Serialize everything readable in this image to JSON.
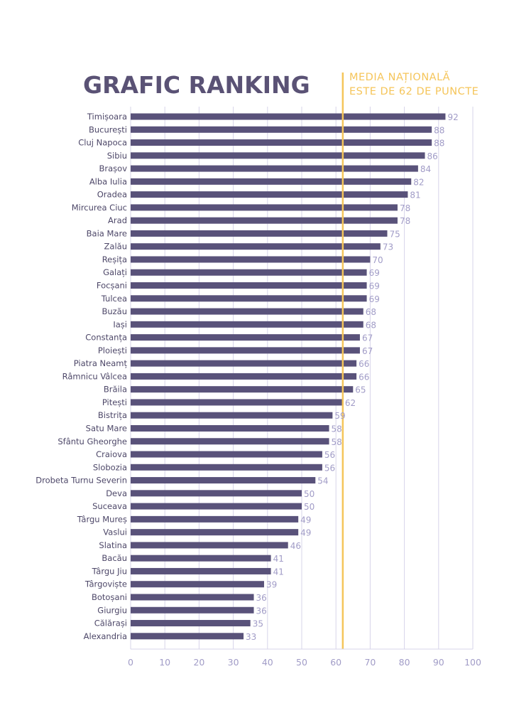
{
  "chart_data": {
    "type": "bar",
    "orientation": "horizontal",
    "title": "GRAFIC RANKING",
    "annotation": [
      "MEDIA NAȚIONALĂ",
      "ESTE DE 62 DE PUNCTE"
    ],
    "reference_line": 62,
    "categories": [
      "Timișoara",
      "București",
      "Cluj Napoca",
      "Sibiu",
      "Brașov",
      "Alba Iulia",
      "Oradea",
      "Mircurea Ciuc",
      "Arad",
      "Baia Mare",
      "Zalău",
      "Reșița",
      "Galați",
      "Focșani",
      "Tulcea",
      "Buzău",
      "Iași",
      "Constanța",
      "Ploiești",
      "Piatra Neamț",
      "Râmnicu Vâlcea",
      "Brăila",
      "Pitești",
      "Bistrița",
      "Satu Mare",
      "Sfântu Gheorghe",
      "Craiova",
      "Slobozia",
      "Drobeta Turnu Severin",
      "Deva",
      "Suceava",
      "Târgu Mureș",
      "Vaslui",
      "Slatina",
      "Bacău",
      "Târgu Jiu",
      "Târgoviște",
      "Botoșani",
      "Giurgiu",
      "Călărași",
      "Alexandria"
    ],
    "values": [
      92,
      88,
      88,
      86,
      84,
      82,
      81,
      78,
      78,
      75,
      73,
      70,
      69,
      69,
      69,
      68,
      68,
      67,
      67,
      66,
      66,
      65,
      62,
      59,
      58,
      58,
      56,
      56,
      54,
      50,
      50,
      49,
      49,
      46,
      41,
      41,
      39,
      36,
      36,
      35,
      33
    ],
    "xlim": [
      0,
      100
    ],
    "xticks": [
      0,
      10,
      20,
      30,
      40,
      50,
      60,
      70,
      80,
      90,
      100
    ],
    "grid": true,
    "colors": {
      "bar": "#59527a",
      "reference": "#f5c55a",
      "grid": "#d7d4ea",
      "value_label": "#a19cc7",
      "category_label": "#4d4768",
      "title": "#5a5275"
    }
  }
}
